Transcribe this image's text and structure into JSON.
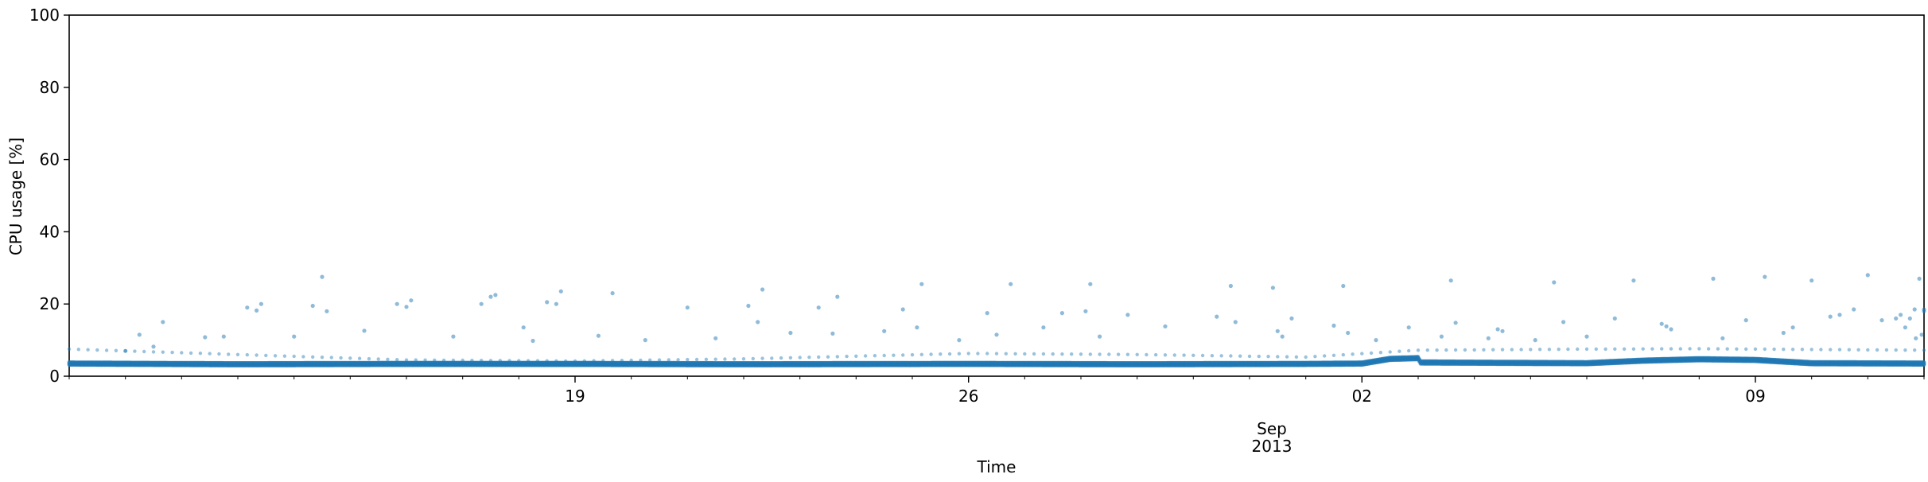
{
  "chart_data": {
    "type": "scatter",
    "title": "",
    "xlabel": "Time",
    "ylabel": "CPU usage [%]",
    "ylim": [
      0,
      100
    ],
    "xlim": [
      "2013-08-10",
      "2013-09-12"
    ],
    "grid": false,
    "legend": "none",
    "color": "#1f77b4",
    "y_ticks": [
      "0",
      "20",
      "40",
      "60",
      "80",
      "100"
    ],
    "x_ticks": [
      {
        "date": "2013-08-19",
        "label": "19"
      },
      {
        "date": "2013-08-26",
        "label": "26"
      },
      {
        "date": "2013-09-02",
        "label": "02"
      },
      {
        "date": "2013-09-09",
        "label": "09"
      }
    ],
    "x_month_label": "Sep",
    "x_year_label": "2013",
    "series": [
      {
        "kind": "baseline",
        "points": [
          [
            "2013-08-10",
            3.5
          ],
          [
            "2013-08-13",
            3.3
          ],
          [
            "2013-08-16",
            3.4
          ],
          [
            "2013-08-19",
            3.4
          ],
          [
            "2013-08-22",
            3.3
          ],
          [
            "2013-08-26",
            3.4
          ],
          [
            "2013-08-29",
            3.3
          ],
          [
            "2013-09-01",
            3.4
          ],
          [
            "2013-09-02",
            3.5
          ],
          [
            "2013-09-02T12:00",
            4.8
          ],
          [
            "2013-09-03",
            5.0
          ],
          [
            "2013-09-03T01:00",
            3.8
          ],
          [
            "2013-09-06",
            3.6
          ],
          [
            "2013-09-07",
            4.3
          ],
          [
            "2013-09-08",
            4.7
          ],
          [
            "2013-09-09",
            4.5
          ],
          [
            "2013-09-10",
            3.6
          ],
          [
            "2013-09-12",
            3.5
          ]
        ]
      },
      {
        "kind": "mid",
        "points": [
          [
            "2013-08-10",
            7.5
          ],
          [
            "2013-08-13",
            6.0
          ],
          [
            "2013-08-16",
            4.5
          ],
          [
            "2013-08-19",
            4.2
          ],
          [
            "2013-08-22",
            4.8
          ],
          [
            "2013-08-26",
            6.3
          ],
          [
            "2013-08-29",
            6.0
          ],
          [
            "2013-09-01",
            5.3
          ],
          [
            "2013-09-03",
            7.2
          ],
          [
            "2013-09-06",
            7.5
          ],
          [
            "2013-09-08",
            7.6
          ],
          [
            "2013-09-12",
            7.2
          ]
        ]
      },
      {
        "kind": "spikes",
        "points": [
          [
            "2013-08-11T00:00",
            7.0
          ],
          [
            "2013-08-11T06:00",
            11.5
          ],
          [
            "2013-08-11T12:00",
            8.2
          ],
          [
            "2013-08-11T16:00",
            15.0
          ],
          [
            "2013-08-12T10:00",
            10.8
          ],
          [
            "2013-08-12T18:00",
            11.0
          ],
          [
            "2013-08-13T04:00",
            19.0
          ],
          [
            "2013-08-13T08:00",
            18.2
          ],
          [
            "2013-08-13T10:00",
            20.0
          ],
          [
            "2013-08-14T00:00",
            11.0
          ],
          [
            "2013-08-14T08:00",
            19.5
          ],
          [
            "2013-08-14T12:00",
            27.5
          ],
          [
            "2013-08-14T14:00",
            18.0
          ],
          [
            "2013-08-15T06:00",
            12.6
          ],
          [
            "2013-08-15T20:00",
            20.0
          ],
          [
            "2013-08-16T00:00",
            19.2
          ],
          [
            "2013-08-16T02:00",
            21.0
          ],
          [
            "2013-08-16T20:00",
            11.0
          ],
          [
            "2013-08-17T08:00",
            20.0
          ],
          [
            "2013-08-17T12:00",
            22.0
          ],
          [
            "2013-08-17T14:00",
            22.5
          ],
          [
            "2013-08-18T02:00",
            13.5
          ],
          [
            "2013-08-18T06:00",
            9.8
          ],
          [
            "2013-08-18T12:00",
            20.5
          ],
          [
            "2013-08-18T16:00",
            20.0
          ],
          [
            "2013-08-18T18:00",
            23.5
          ],
          [
            "2013-08-19T10:00",
            11.2
          ],
          [
            "2013-08-19T16:00",
            23.0
          ],
          [
            "2013-08-20T06:00",
            10.0
          ],
          [
            "2013-08-21T00:00",
            19.0
          ],
          [
            "2013-08-21T12:00",
            10.5
          ],
          [
            "2013-08-22T02:00",
            19.5
          ],
          [
            "2013-08-22T06:00",
            15.0
          ],
          [
            "2013-08-22T08:00",
            24.0
          ],
          [
            "2013-08-22T20:00",
            12.0
          ],
          [
            "2013-08-23T08:00",
            19.0
          ],
          [
            "2013-08-23T14:00",
            11.8
          ],
          [
            "2013-08-23T16:00",
            22.0
          ],
          [
            "2013-08-24T12:00",
            12.5
          ],
          [
            "2013-08-24T20:00",
            18.5
          ],
          [
            "2013-08-25T02:00",
            13.5
          ],
          [
            "2013-08-25T04:00",
            25.5
          ],
          [
            "2013-08-25T20:00",
            10.0
          ],
          [
            "2013-08-26T08:00",
            17.5
          ],
          [
            "2013-08-26T12:00",
            11.5
          ],
          [
            "2013-08-26T18:00",
            25.5
          ],
          [
            "2013-08-27T08:00",
            13.5
          ],
          [
            "2013-08-27T16:00",
            17.5
          ],
          [
            "2013-08-28T02:00",
            18.0
          ],
          [
            "2013-08-28T04:00",
            25.5
          ],
          [
            "2013-08-28T08:00",
            11.0
          ],
          [
            "2013-08-28T20:00",
            17.0
          ],
          [
            "2013-08-29T12:00",
            13.8
          ],
          [
            "2013-08-30T10:00",
            16.5
          ],
          [
            "2013-08-30T16:00",
            25.0
          ],
          [
            "2013-08-30T18:00",
            15.0
          ],
          [
            "2013-08-31T10:00",
            24.5
          ],
          [
            "2013-08-31T12:00",
            12.5
          ],
          [
            "2013-08-31T14:00",
            11.0
          ],
          [
            "2013-08-31T18:00",
            16.0
          ],
          [
            "2013-09-01T12:00",
            14.0
          ],
          [
            "2013-09-01T16:00",
            25.0
          ],
          [
            "2013-09-01T18:00",
            12.0
          ],
          [
            "2013-09-02T06:00",
            10.0
          ],
          [
            "2013-09-02T20:00",
            13.5
          ],
          [
            "2013-09-03T10:00",
            11.0
          ],
          [
            "2013-09-03T14:00",
            26.5
          ],
          [
            "2013-09-03T16:00",
            14.8
          ],
          [
            "2013-09-04T06:00",
            10.5
          ],
          [
            "2013-09-04T10:00",
            13.0
          ],
          [
            "2013-09-04T12:00",
            12.5
          ],
          [
            "2013-09-05T02:00",
            10.0
          ],
          [
            "2013-09-05T10:00",
            26.0
          ],
          [
            "2013-09-05T14:00",
            15.0
          ],
          [
            "2013-09-06T00:00",
            11.0
          ],
          [
            "2013-09-06T12:00",
            16.0
          ],
          [
            "2013-09-06T20:00",
            26.5
          ],
          [
            "2013-09-07T08:00",
            14.5
          ],
          [
            "2013-09-07T10:00",
            13.8
          ],
          [
            "2013-09-07T12:00",
            13.0
          ],
          [
            "2013-09-08T06:00",
            27.0
          ],
          [
            "2013-09-08T10:00",
            10.5
          ],
          [
            "2013-09-08T20:00",
            15.5
          ],
          [
            "2013-09-09T04:00",
            27.5
          ],
          [
            "2013-09-09T12:00",
            12.0
          ],
          [
            "2013-09-09T16:00",
            13.5
          ],
          [
            "2013-09-10T00:00",
            26.5
          ],
          [
            "2013-09-10T08:00",
            16.5
          ],
          [
            "2013-09-10T12:00",
            17.0
          ],
          [
            "2013-09-10T18:00",
            18.5
          ],
          [
            "2013-09-11T00:00",
            28.0
          ],
          [
            "2013-09-11T06:00",
            15.5
          ],
          [
            "2013-09-11T12:00",
            16.0
          ],
          [
            "2013-09-11T16:00",
            13.5
          ],
          [
            "2013-09-11T20:00",
            18.5
          ],
          [
            "2013-09-11T22:00",
            27.0
          ],
          [
            "2013-09-12T00:00",
            18.0
          ],
          [
            "2013-09-11T14:00",
            17.0
          ],
          [
            "2013-09-11T18:00",
            16.0
          ],
          [
            "2013-09-11T20:30",
            10.5
          ],
          [
            "2013-09-11T23:00",
            11.5
          ],
          [
            "2013-09-12T00:00",
            18.5
          ]
        ]
      }
    ]
  }
}
